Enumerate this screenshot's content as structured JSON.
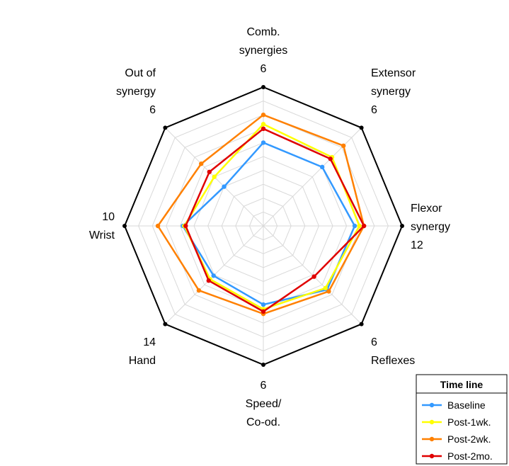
{
  "chart_data": {
    "type": "radar",
    "grid": true,
    "rings": 10,
    "axes": [
      {
        "label": [
          "Comb.",
          "synergies",
          "6"
        ],
        "max": 6
      },
      {
        "label": [
          "Extensor",
          "synergy",
          "6"
        ],
        "max": 6
      },
      {
        "label": [
          "Flexor",
          "synergy",
          "12"
        ],
        "max": 12
      },
      {
        "label": [
          "6",
          "Reflexes"
        ],
        "max": 6
      },
      {
        "label": [
          "6",
          "Speed/",
          "Co-od."
        ],
        "max": 6
      },
      {
        "label": [
          "14",
          "Hand"
        ],
        "max": 14
      },
      {
        "label": [
          "10",
          "Wrist"
        ],
        "max": 10
      },
      {
        "label": [
          "Out of",
          "synergy",
          "6"
        ],
        "max": 6
      }
    ],
    "legend": {
      "title": "Time line",
      "position": "bottom-right"
    },
    "series": [
      {
        "name": "Baseline",
        "color": "#3399ff",
        "values": [
          3.6,
          3.6,
          7.9,
          3.9,
          3.4,
          7.1,
          5.8,
          2.4
        ]
      },
      {
        "name": "Post-1wk.",
        "color": "#ffff00",
        "values": [
          4.4,
          4.2,
          8.3,
          3.8,
          3.6,
          7.6,
          5.7,
          3.0
        ]
      },
      {
        "name": "Post-2wk.",
        "color": "#ff8000",
        "values": [
          4.8,
          4.9,
          8.7,
          4.0,
          3.8,
          9.2,
          7.6,
          3.8
        ]
      },
      {
        "name": "Post-2mo.",
        "color": "#e00000",
        "values": [
          4.2,
          4.1,
          8.7,
          3.1,
          3.7,
          7.8,
          5.6,
          3.3
        ]
      }
    ]
  }
}
